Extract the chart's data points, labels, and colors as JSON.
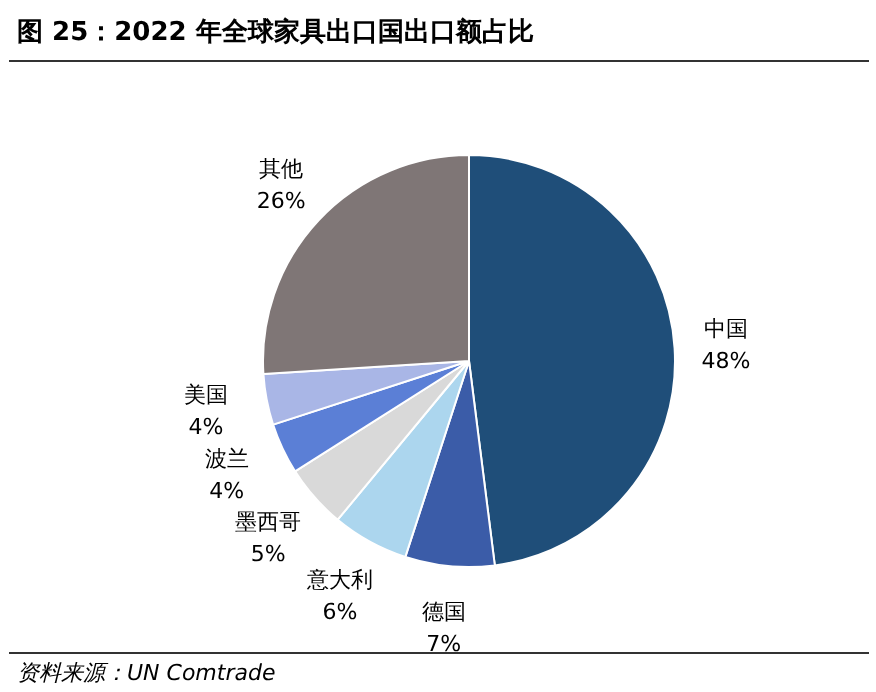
{
  "chart_data": {
    "type": "pie",
    "title": "图 25：2022 年全球家具出口国出口额占比",
    "categories": [
      "中国",
      "德国",
      "意大利",
      "墨西哥",
      "波兰",
      "美国",
      "其他"
    ],
    "values": [
      48,
      7,
      6,
      5,
      4,
      4,
      26
    ],
    "colors": [
      "#1f4e79",
      "#3b5ca8",
      "#acd6ee",
      "#d9d9d9",
      "#5b7fd6",
      "#a9b6e6",
      "#7f7676"
    ],
    "value_labels": [
      "48%",
      "7%",
      "6%",
      "5%",
      "4%",
      "4%",
      "26%"
    ],
    "annotations": [
      "资料来源：UN Comtrade"
    ]
  }
}
